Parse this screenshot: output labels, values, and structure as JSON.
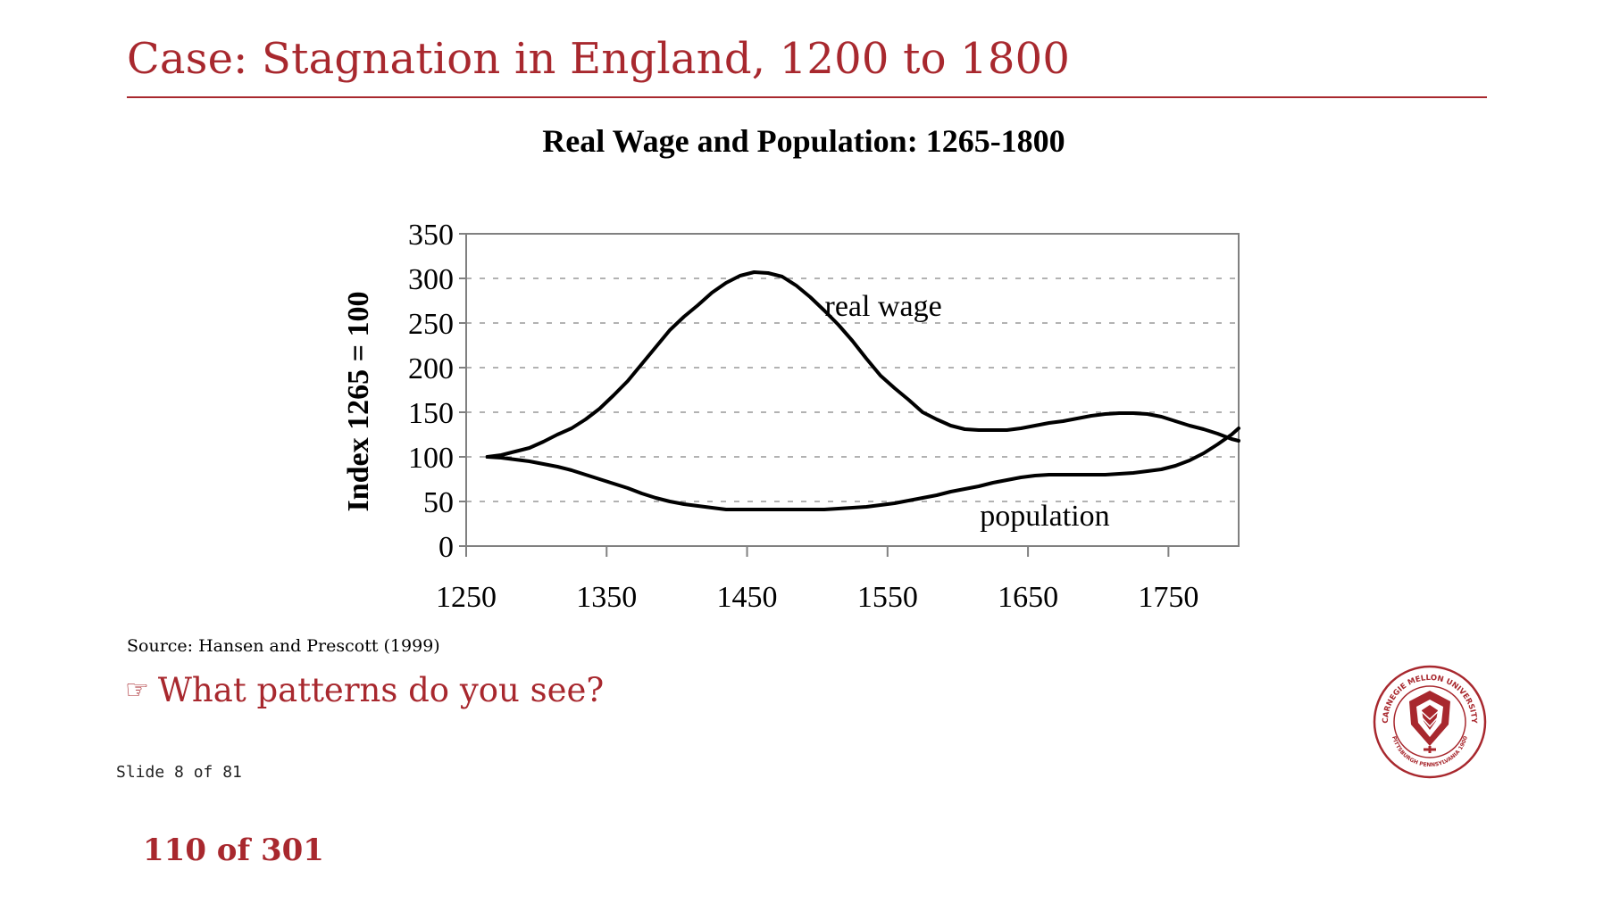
{
  "slide": {
    "title": "Case: Stagnation in England, 1200 to 1800",
    "source": "Source: Hansen and Prescott (1999)",
    "question": "What patterns do you see?",
    "question_icon": "pointing-hand-icon",
    "slide_number": "Slide 8 of 81",
    "page_counter": "110 of 301",
    "seal": {
      "top_text": "CARNEGIE MELLON UNIVERSITY",
      "bottom_text": "PITTSBURGH PENNSYLVANIA 1900"
    }
  },
  "colors": {
    "accent": "#a8282e",
    "line": "#000000",
    "grid": "#999999",
    "axis_box": "#808080"
  },
  "chart_data": {
    "type": "line",
    "title": "Real Wage and Population: 1265-1800",
    "ylabel": "Index 1265 = 100",
    "xlabel": "",
    "xlim": [
      1250,
      1800
    ],
    "ylim": [
      0,
      350
    ],
    "x_ticks": [
      1250,
      1350,
      1450,
      1550,
      1650,
      1750
    ],
    "y_ticks": [
      0,
      50,
      100,
      150,
      200,
      250,
      300,
      350
    ],
    "grid": "horizontal dashed",
    "series": [
      {
        "name": "real wage",
        "x": [
          1265,
          1275,
          1285,
          1295,
          1305,
          1315,
          1325,
          1335,
          1345,
          1355,
          1365,
          1375,
          1385,
          1395,
          1405,
          1415,
          1425,
          1435,
          1445,
          1455,
          1465,
          1475,
          1485,
          1495,
          1505,
          1515,
          1525,
          1535,
          1545,
          1555,
          1565,
          1575,
          1585,
          1595,
          1605,
          1615,
          1625,
          1635,
          1645,
          1655,
          1665,
          1675,
          1685,
          1695,
          1705,
          1715,
          1725,
          1735,
          1745,
          1755,
          1765,
          1775,
          1785,
          1795,
          1800
        ],
        "values": [
          100,
          102,
          106,
          110,
          117,
          125,
          132,
          142,
          154,
          169,
          185,
          204,
          223,
          242,
          257,
          270,
          284,
          295,
          303,
          307,
          306,
          302,
          292,
          279,
          264,
          248,
          230,
          210,
          191,
          177,
          164,
          150,
          142,
          135,
          131,
          130,
          130,
          130,
          132,
          135,
          138,
          140,
          143,
          146,
          148,
          149,
          149,
          148,
          145,
          140,
          135,
          131,
          126,
          120,
          118
        ]
      },
      {
        "name": "population",
        "x": [
          1265,
          1275,
          1285,
          1295,
          1305,
          1315,
          1325,
          1335,
          1345,
          1355,
          1365,
          1375,
          1385,
          1395,
          1405,
          1415,
          1425,
          1435,
          1445,
          1455,
          1465,
          1475,
          1485,
          1495,
          1505,
          1515,
          1525,
          1535,
          1545,
          1555,
          1565,
          1575,
          1585,
          1595,
          1605,
          1615,
          1625,
          1635,
          1645,
          1655,
          1665,
          1675,
          1685,
          1695,
          1705,
          1715,
          1725,
          1735,
          1745,
          1755,
          1765,
          1775,
          1785,
          1795,
          1800
        ],
        "values": [
          100,
          99,
          97,
          95,
          92,
          89,
          85,
          80,
          75,
          70,
          65,
          59,
          54,
          50,
          47,
          45,
          43,
          41,
          41,
          41,
          41,
          41,
          41,
          41,
          41,
          42,
          43,
          44,
          46,
          48,
          51,
          54,
          57,
          61,
          64,
          67,
          71,
          74,
          77,
          79,
          80,
          80,
          80,
          80,
          80,
          81,
          82,
          84,
          86,
          90,
          96,
          104,
          114,
          125,
          132
        ]
      }
    ]
  }
}
